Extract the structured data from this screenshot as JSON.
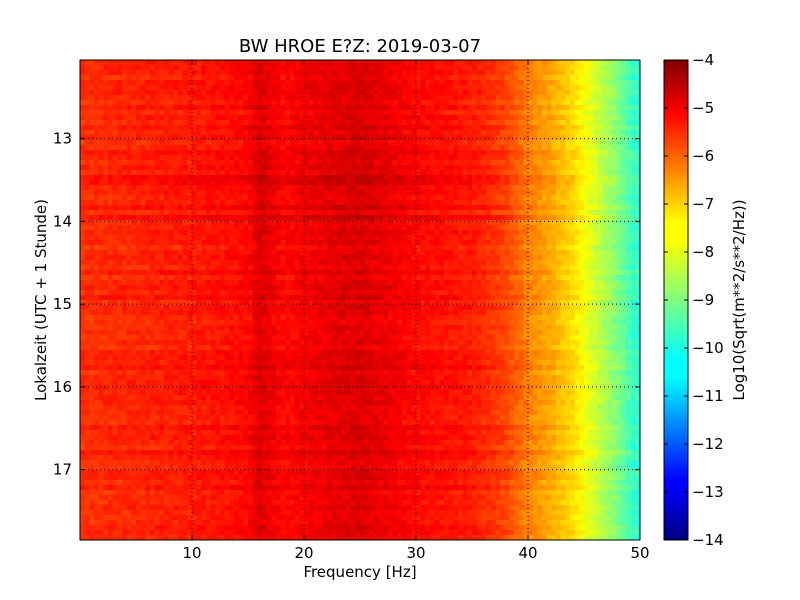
{
  "chart_data": {
    "type": "heatmap",
    "title": "BW HROE E?Z: 2019-03-07",
    "xlabel": "Frequency [Hz]",
    "ylabel": "Lokalzeit (UTC + 1 Stunde)",
    "xlim": [
      0,
      50
    ],
    "ylim": [
      12.05,
      17.85
    ],
    "y_inverted": true,
    "x_ticks": [
      10,
      20,
      30,
      40,
      50
    ],
    "x_tick_labels": [
      "10",
      "20",
      "30",
      "40",
      "50"
    ],
    "y_ticks": [
      13,
      14,
      15,
      16,
      17
    ],
    "y_tick_labels": [
      "13",
      "14",
      "15",
      "16",
      "17"
    ],
    "grid": true,
    "colormap": "jet",
    "colorbar": {
      "label": "Log10(Sqrt(m**2/s**2/Hz))",
      "range": [
        -14,
        -4
      ],
      "ticks": [
        -4,
        -5,
        -6,
        -7,
        -8,
        -9,
        -10,
        -11,
        -12,
        -13,
        -14
      ],
      "tick_labels": [
        "−4",
        "−5",
        "−6",
        "−7",
        "−8",
        "−9",
        "−10",
        "−11",
        "−12",
        "−13",
        "−14"
      ]
    },
    "spectrum_profile": {
      "frequency_hz": [
        0,
        5,
        10,
        15,
        16,
        18,
        21,
        25,
        30,
        35,
        38,
        40,
        42,
        44,
        45,
        46,
        47,
        48,
        49,
        50
      ],
      "value": [
        -5.7,
        -5.6,
        -5.5,
        -5.3,
        -4.9,
        -5.3,
        -5.1,
        -4.9,
        -5.3,
        -5.5,
        -5.9,
        -6.5,
        -6.9,
        -7.4,
        -7.8,
        -8.2,
        -8.6,
        -9.0,
        -9.5,
        -9.9
      ]
    }
  }
}
